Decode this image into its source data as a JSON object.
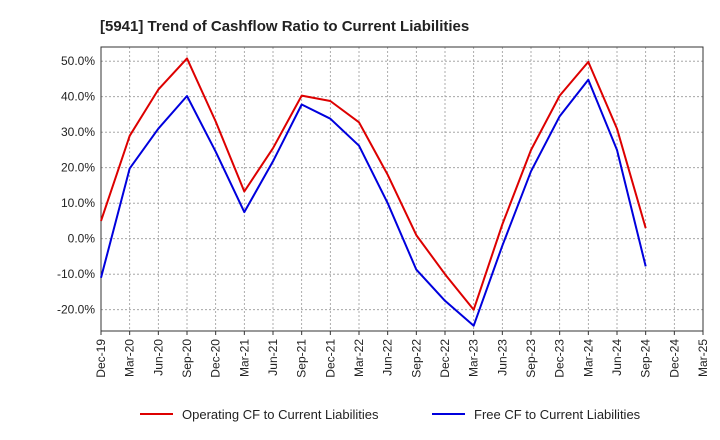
{
  "chart_data": {
    "type": "line",
    "title": "[5941]  Trend of Cashflow Ratio to Current Liabilities",
    "xlabel": "",
    "ylabel": "",
    "categories": [
      "Dec-19",
      "Mar-20",
      "Jun-20",
      "Sep-20",
      "Dec-20",
      "Mar-21",
      "Jun-21",
      "Sep-21",
      "Dec-21",
      "Mar-22",
      "Jun-22",
      "Sep-22",
      "Dec-22",
      "Mar-23",
      "Jun-23",
      "Sep-23",
      "Dec-23",
      "Mar-24",
      "Jun-24",
      "Sep-24",
      "Dec-24",
      "Mar-25"
    ],
    "ylim": [
      -26,
      54
    ],
    "yticks": [
      50,
      40,
      30,
      20,
      10,
      0,
      -10,
      -20
    ],
    "ytick_labels": [
      "50.0%",
      "40.0%",
      "30.0%",
      "20.0%",
      "10.0%",
      "0.0%",
      "-10.0%",
      "-20.0%"
    ],
    "grid": true,
    "legend_position": "bottom",
    "series": [
      {
        "name": "Operating CF to Current Liabilities",
        "color": "#dd0000",
        "values": [
          5.0,
          29.0,
          42.0,
          50.8,
          33.0,
          13.3,
          25.5,
          40.3,
          38.8,
          32.8,
          18.0,
          1.0,
          -10.0,
          -20.0,
          4.0,
          25.0,
          40.3,
          49.8,
          31.0,
          3.0,
          null,
          null
        ]
      },
      {
        "name": "Free CF to Current Liabilities",
        "color": "#0000dd",
        "values": [
          -11.0,
          19.8,
          31.0,
          40.2,
          24.5,
          7.5,
          21.8,
          37.8,
          33.8,
          26.2,
          10.0,
          -8.7,
          -17.5,
          -24.5,
          -2.0,
          19.0,
          34.5,
          44.8,
          25.0,
          -7.8,
          null,
          null
        ]
      }
    ]
  }
}
